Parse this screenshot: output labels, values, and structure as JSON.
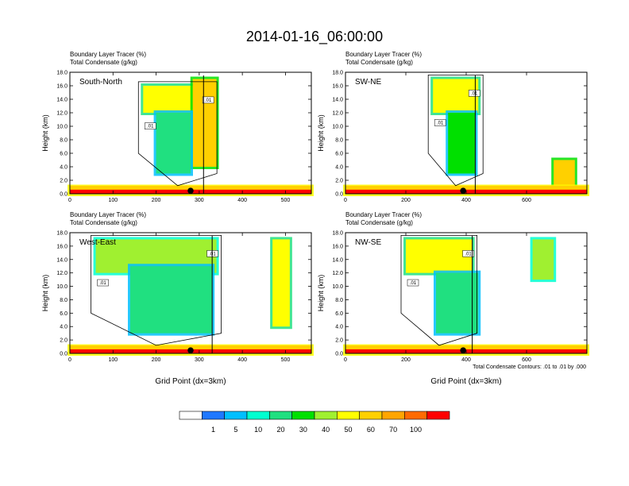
{
  "title": "2014-01-16_06:00:00",
  "panel_header_line1": "Boundary Layer Tracer   (%)",
  "panel_header_line2": "Total Condensate   (g/kg)",
  "ylabel": "Height (km)",
  "xlabel": "Grid Point (dx=3km)",
  "contour_note": "Total Condensate Contours: .01 to .01 by .000",
  "contour_label": ".01",
  "colors": {
    "levels": [
      "#ffffff",
      "#1f78ff",
      "#00bfff",
      "#00ffd0",
      "#20e080",
      "#00e000",
      "#a0f030",
      "#ffff00",
      "#ffd000",
      "#ffa500",
      "#ff6a00",
      "#ff0000"
    ],
    "contour": "#000000"
  },
  "colorbar": {
    "labels": [
      "1",
      "5",
      "10",
      "20",
      "30",
      "40",
      "50",
      "60",
      "70",
      "100"
    ]
  },
  "chart_data": [
    {
      "type": "heatmap",
      "name": "South-North",
      "title": "South-North",
      "x_ticks": [
        0,
        100,
        200,
        300,
        400,
        500
      ],
      "xlim": [
        0,
        560
      ],
      "y_ticks": [
        0.0,
        2.0,
        4.0,
        6.0,
        8.0,
        10.0,
        12.0,
        14.0,
        16.0,
        18.0
      ],
      "ylim": [
        0,
        18
      ],
      "marker_x": 280,
      "surface_line_x": 310,
      "regions": [
        {
          "x": [
            170,
            330
          ],
          "y": [
            12,
            16
          ],
          "level": 7
        },
        {
          "x": [
            285,
            340
          ],
          "y": [
            4,
            17
          ],
          "level": 8
        },
        {
          "x": [
            200,
            280
          ],
          "y": [
            3,
            12
          ],
          "level": 4
        },
        {
          "x": [
            0,
            560
          ],
          "y": [
            0,
            1
          ],
          "level": 10
        }
      ]
    },
    {
      "type": "heatmap",
      "name": "SW-NE",
      "title": "SW-NE",
      "x_ticks": [
        0,
        200,
        400,
        600
      ],
      "xlim": [
        0,
        800
      ],
      "y_ticks": [
        0.0,
        2.0,
        4.0,
        6.0,
        8.0,
        10.0,
        12.0,
        14.0,
        16.0,
        18.0
      ],
      "ylim": [
        0,
        18
      ],
      "marker_x": 390,
      "surface_line_x": 430,
      "regions": [
        {
          "x": [
            290,
            440
          ],
          "y": [
            12,
            17
          ],
          "level": 7
        },
        {
          "x": [
            340,
            430
          ],
          "y": [
            3,
            12
          ],
          "level": 5
        },
        {
          "x": [
            690,
            760
          ],
          "y": [
            1,
            5
          ],
          "level": 8
        },
        {
          "x": [
            0,
            800
          ],
          "y": [
            0,
            1
          ],
          "level": 10
        }
      ]
    },
    {
      "type": "heatmap",
      "name": "West-East",
      "title": "West-East",
      "x_ticks": [
        0,
        100,
        200,
        300,
        400,
        500
      ],
      "xlim": [
        0,
        560
      ],
      "y_ticks": [
        0.0,
        2.0,
        4.0,
        6.0,
        8.0,
        10.0,
        12.0,
        14.0,
        16.0,
        18.0
      ],
      "ylim": [
        0,
        18
      ],
      "marker_x": 280,
      "surface_line_x": 330,
      "regions": [
        {
          "x": [
            60,
            340
          ],
          "y": [
            12,
            17
          ],
          "level": 6
        },
        {
          "x": [
            140,
            330
          ],
          "y": [
            3,
            13
          ],
          "level": 4
        },
        {
          "x": [
            470,
            510
          ],
          "y": [
            4,
            17
          ],
          "level": 7
        },
        {
          "x": [
            0,
            560
          ],
          "y": [
            0,
            1
          ],
          "level": 10
        }
      ]
    },
    {
      "type": "heatmap",
      "name": "NW-SE",
      "title": "NW-SE",
      "x_ticks": [
        0,
        200,
        400,
        600
      ],
      "xlim": [
        0,
        800
      ],
      "y_ticks": [
        0.0,
        2.0,
        4.0,
        6.0,
        8.0,
        10.0,
        12.0,
        14.0,
        16.0,
        18.0
      ],
      "ylim": [
        0,
        18
      ],
      "marker_x": 390,
      "surface_line_x": 420,
      "regions": [
        {
          "x": [
            200,
            420
          ],
          "y": [
            12,
            17
          ],
          "level": 7
        },
        {
          "x": [
            300,
            440
          ],
          "y": [
            3,
            12
          ],
          "level": 4
        },
        {
          "x": [
            620,
            690
          ],
          "y": [
            11,
            17
          ],
          "level": 6
        },
        {
          "x": [
            0,
            800
          ],
          "y": [
            0,
            1
          ],
          "level": 10
        }
      ]
    }
  ]
}
